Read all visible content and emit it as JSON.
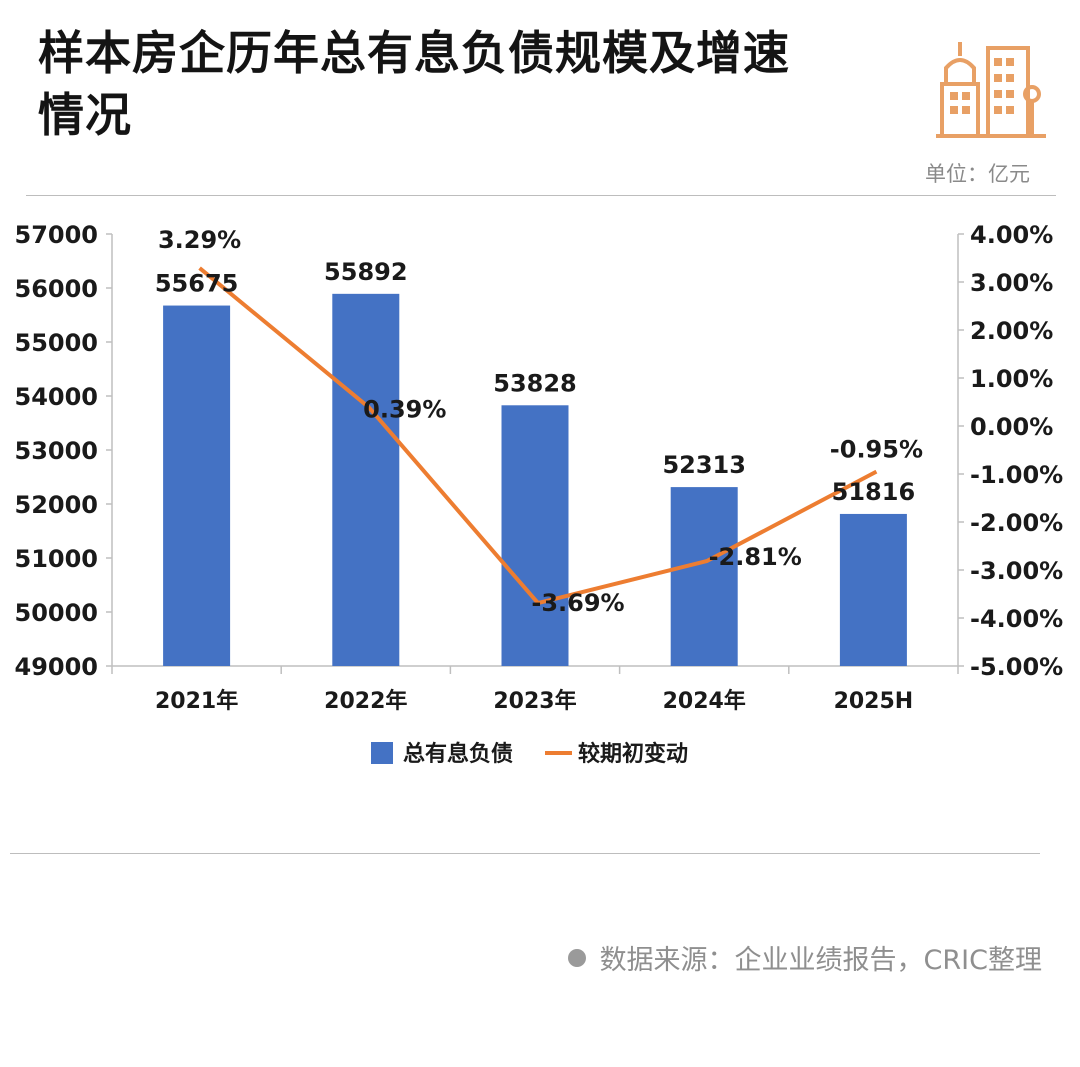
{
  "header": {
    "title": "样本房企历年总有息负债规模及增速情况",
    "unit": "单位：亿元",
    "logo_icon": "building-icon"
  },
  "footer": {
    "source": "数据来源：企业业绩报告，CRIC整理"
  },
  "colors": {
    "bar": "#4472C4",
    "line": "#ED7D31",
    "accent_logo": "#E8A065"
  },
  "chart_data": {
    "type": "bar",
    "categories": [
      "2021年",
      "2022年",
      "2023年",
      "2024年",
      "2025H"
    ],
    "series": [
      {
        "name": "总有息负债",
        "type": "bar",
        "axis": "left",
        "values": [
          55675,
          55892,
          53828,
          52313,
          51816
        ],
        "labels": [
          "55675",
          "55892",
          "53828",
          "52313",
          "51816"
        ]
      },
      {
        "name": "较期初变动",
        "type": "line",
        "axis": "right",
        "values": [
          3.29,
          0.39,
          -3.69,
          -2.81,
          -0.95
        ],
        "labels": [
          "3.29%",
          "0.39%",
          "-3.69%",
          "-2.81%",
          "-0.95%"
        ]
      }
    ],
    "y_left": {
      "range": [
        49000,
        57000
      ],
      "ticks": [
        "57000",
        "56000",
        "55000",
        "54000",
        "53000",
        "52000",
        "51000",
        "50000",
        "49000"
      ]
    },
    "y_right": {
      "range": [
        -5,
        4
      ],
      "ticks": [
        "4.00%",
        "3.00%",
        "2.00%",
        "1.00%",
        "0.00%",
        "-1.00%",
        "-2.00%",
        "-3.00%",
        "-4.00%",
        "-5.00%"
      ]
    },
    "legend": {
      "position": "bottom",
      "entries": [
        "总有息负债",
        "较期初变动"
      ]
    },
    "grid": false
  }
}
